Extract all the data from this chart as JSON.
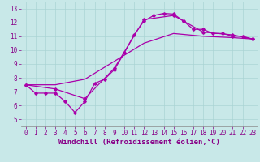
{
  "xlabel": "Windchill (Refroidissement éolien,°C)",
  "bg_color": "#c8e8e8",
  "line_color": "#aa00aa",
  "grid_color": "#b0d8d8",
  "xlim": [
    -0.5,
    23.5
  ],
  "ylim": [
    4.5,
    13.5
  ],
  "xticks": [
    0,
    1,
    2,
    3,
    4,
    5,
    6,
    7,
    8,
    9,
    10,
    11,
    12,
    13,
    14,
    15,
    16,
    17,
    18,
    19,
    20,
    21,
    22,
    23
  ],
  "yticks": [
    5,
    6,
    7,
    8,
    9,
    10,
    11,
    12,
    13
  ],
  "line1_x": [
    0,
    1,
    2,
    3,
    4,
    5,
    6,
    7,
    8,
    9,
    10,
    11,
    12,
    13,
    14,
    15,
    16,
    17,
    18,
    19,
    20,
    21,
    22,
    23
  ],
  "line1_y": [
    7.5,
    6.9,
    6.9,
    6.9,
    6.3,
    5.5,
    6.3,
    7.6,
    7.9,
    8.6,
    9.8,
    11.1,
    12.1,
    12.5,
    12.65,
    12.6,
    12.1,
    11.5,
    11.5,
    11.2,
    11.2,
    11.0,
    11.0,
    10.8
  ],
  "line2_x": [
    0,
    3,
    6,
    9,
    12,
    15,
    16,
    18,
    21,
    23
  ],
  "line2_y": [
    7.5,
    7.2,
    6.5,
    8.7,
    12.2,
    12.5,
    12.1,
    11.3,
    11.1,
    10.8
  ],
  "line3_x": [
    0,
    3,
    6,
    9,
    12,
    15,
    18,
    21,
    23
  ],
  "line3_y": [
    7.5,
    7.5,
    7.9,
    9.2,
    10.5,
    11.2,
    11.0,
    10.9,
    10.8
  ],
  "tick_fontsize": 5.5,
  "label_fontsize": 6.5
}
